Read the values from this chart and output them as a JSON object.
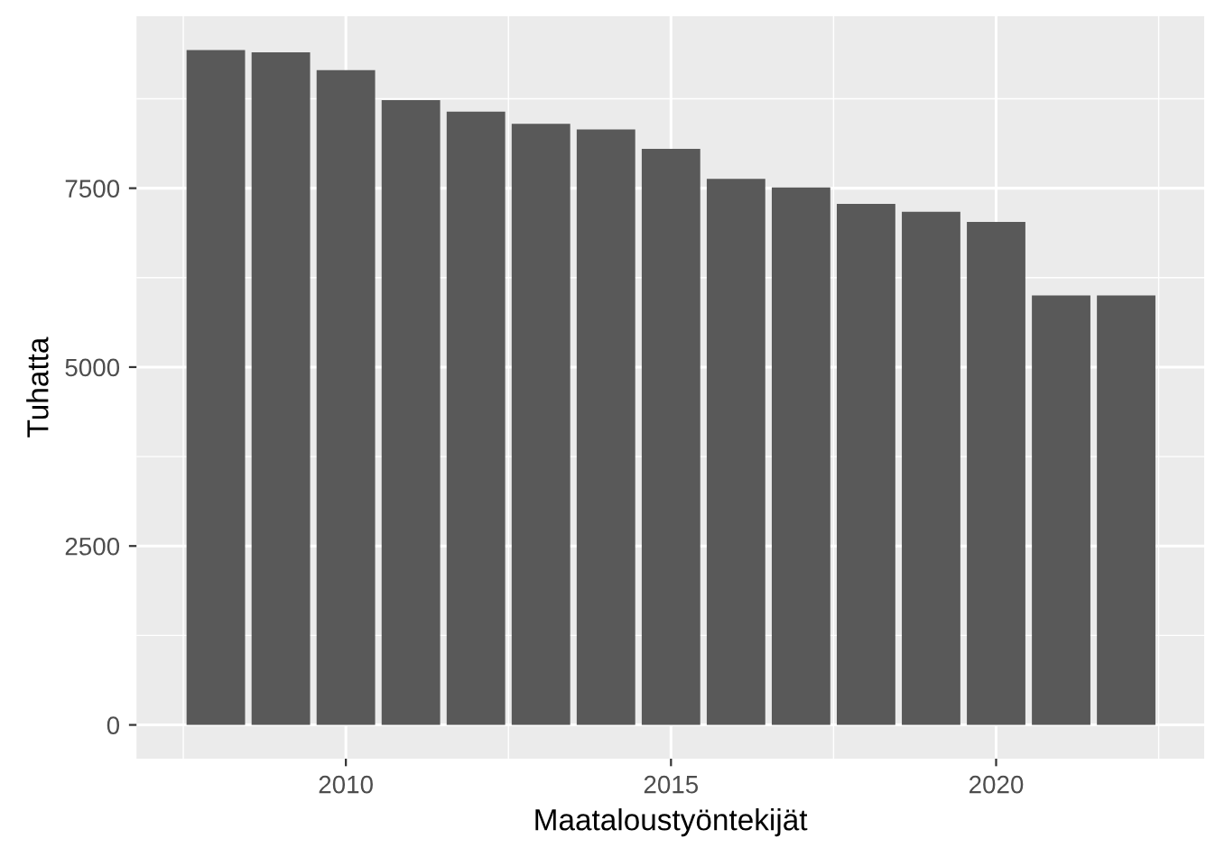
{
  "chart_data": {
    "type": "bar",
    "xlabel": "Maataloustyöntekijät",
    "ylabel": "Tuhatta",
    "x": [
      2008,
      2009,
      2010,
      2011,
      2012,
      2013,
      2014,
      2015,
      2016,
      2017,
      2018,
      2019,
      2020,
      2021,
      2022
    ],
    "values": [
      9430,
      9400,
      9150,
      8730,
      8570,
      8400,
      8320,
      8050,
      7630,
      7510,
      7280,
      7170,
      7030,
      6000,
      6000
    ],
    "color": "#595959",
    "xlim": [
      2006.78,
      2023.2
    ],
    "xticks": [
      2010,
      2015,
      2020
    ],
    "ylim": [
      -472,
      9903
    ],
    "yticks": [
      0,
      2500,
      5000,
      7500
    ],
    "grid": true
  }
}
